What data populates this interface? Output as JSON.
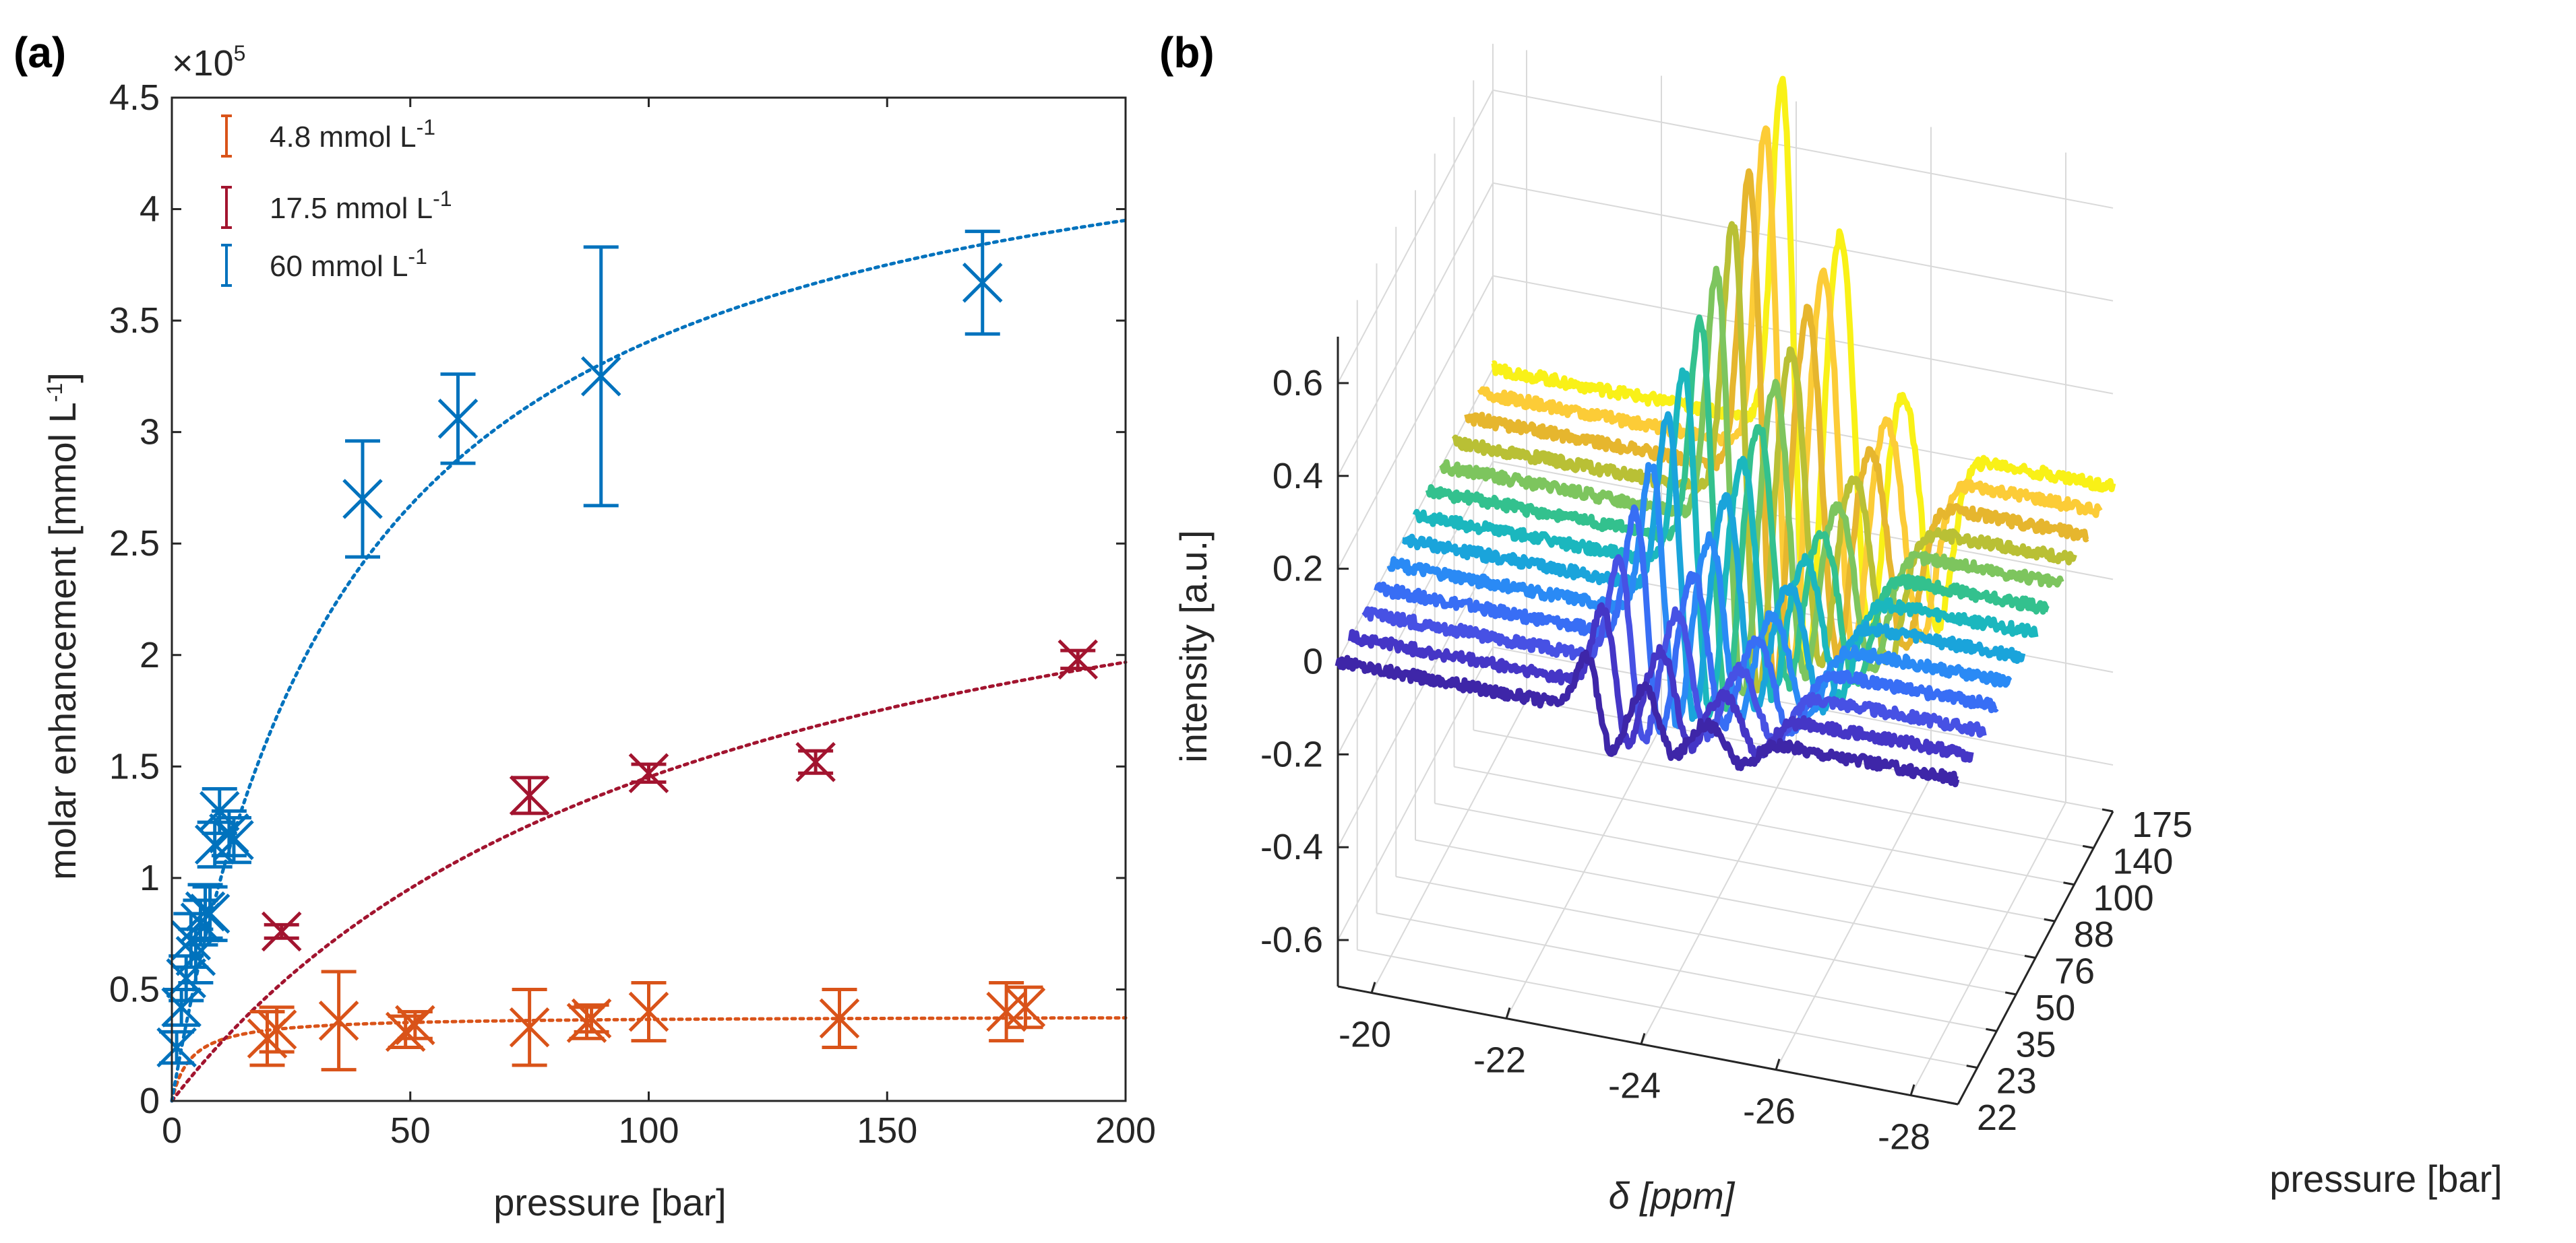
{
  "panel_labels": {
    "a": "(a)",
    "b": "(b)"
  },
  "chart_data": [
    {
      "type": "scatter",
      "panel": "(a)",
      "xlabel": "pressure [bar]",
      "ylabel": "molar enhancement [mmol L",
      "ylabel_sup": "-1",
      "ylabel_end": "]",
      "exponent_label": "×10",
      "exponent_sup": "5",
      "xlim": [
        0,
        200
      ],
      "ylim": [
        0,
        4.5
      ],
      "x_ticks": [
        "0",
        "50",
        "100",
        "150",
        "200"
      ],
      "y_ticks": [
        "0",
        "0.5",
        "1",
        "1.5",
        "2",
        "2.5",
        "3",
        "3.5",
        "4",
        "4.5"
      ],
      "x_tick_values": [
        0,
        50,
        100,
        150,
        200
      ],
      "y_tick_values": [
        0,
        0.5,
        1,
        1.5,
        2,
        2.5,
        3,
        3.5,
        4,
        4.5
      ],
      "legend_position": "top-left",
      "series": [
        {
          "name": "4.8 mmol L",
          "name_sup": "-1",
          "color": "#D95319",
          "fit": {
            "model": "saturation",
            "a": 0.38,
            "k": 4
          },
          "points": [
            {
              "x": 20,
              "y": 0.28,
              "err": 0.12
            },
            {
              "x": 22,
              "y": 0.32,
              "err": 0.1
            },
            {
              "x": 35,
              "y": 0.36,
              "err": 0.22
            },
            {
              "x": 49,
              "y": 0.31,
              "err": 0.07
            },
            {
              "x": 51,
              "y": 0.34,
              "err": 0.06
            },
            {
              "x": 75,
              "y": 0.33,
              "err": 0.17
            },
            {
              "x": 87,
              "y": 0.35,
              "err": 0.07
            },
            {
              "x": 88,
              "y": 0.37,
              "err": 0.06
            },
            {
              "x": 100,
              "y": 0.4,
              "err": 0.13
            },
            {
              "x": 140,
              "y": 0.37,
              "err": 0.13
            },
            {
              "x": 175,
              "y": 0.4,
              "err": 0.13
            },
            {
              "x": 179,
              "y": 0.42,
              "err": 0.09
            }
          ]
        },
        {
          "name": "17.5 mmol L",
          "name_sup": "-1",
          "color": "#A2142F",
          "fit": {
            "model": "saturation",
            "a": 3.05,
            "k": 110
          },
          "points": [
            {
              "x": 23,
              "y": 0.76,
              "err": 0.03
            },
            {
              "x": 75,
              "y": 1.37,
              "err": 0.08
            },
            {
              "x": 100,
              "y": 1.47,
              "err": 0.04
            },
            {
              "x": 135,
              "y": 1.52,
              "err": 0.05
            },
            {
              "x": 190,
              "y": 1.98,
              "err": 0.04
            }
          ]
        },
        {
          "name": "60 mmol L",
          "name_sup": "-1",
          "color": "#0072BD",
          "fit": {
            "model": "saturation",
            "a": 4.7,
            "k": 38
          },
          "points": [
            {
              "x": 1,
              "y": 0.24,
              "err": 0.07
            },
            {
              "x": 2,
              "y": 0.42,
              "err": 0.08
            },
            {
              "x": 3,
              "y": 0.55,
              "err": 0.1
            },
            {
              "x": 4,
              "y": 0.72,
              "err": 0.12
            },
            {
              "x": 5,
              "y": 0.65,
              "err": 0.12
            },
            {
              "x": 6,
              "y": 0.8,
              "err": 0.1
            },
            {
              "x": 7,
              "y": 0.85,
              "err": 0.12
            },
            {
              "x": 8,
              "y": 0.84,
              "err": 0.12
            },
            {
              "x": 9,
              "y": 1.15,
              "err": 0.1
            },
            {
              "x": 10,
              "y": 1.3,
              "err": 0.1
            },
            {
              "x": 12,
              "y": 1.2,
              "err": 0.1
            },
            {
              "x": 13,
              "y": 1.17,
              "err": 0.1
            },
            {
              "x": 40,
              "y": 2.7,
              "err": 0.26
            },
            {
              "x": 60,
              "y": 3.06,
              "err": 0.2
            },
            {
              "x": 90,
              "y": 3.25,
              "err": 0.58
            },
            {
              "x": 170,
              "y": 3.67,
              "err": 0.23
            }
          ]
        }
      ]
    },
    {
      "type": "line",
      "panel": "(b)",
      "style": "3d-waterfall",
      "xlabel": "δ [ppm]",
      "ylabel": "pressure [bar]",
      "zlabel": "intensity [a.u.]",
      "x_ticks": [
        "-20",
        "-22",
        "-24",
        "-26",
        "-28"
      ],
      "pressure_ticks": [
        "22",
        "23",
        "35",
        "50",
        "76",
        "88",
        "100",
        "140",
        "175"
      ],
      "z_ticks": [
        "-0.6",
        "-0.4",
        "-0.2",
        "0",
        "0.2",
        "0.4",
        "0.6"
      ],
      "xlim": [
        -19.5,
        -28.7
      ],
      "zlim": [
        -0.7,
        0.7
      ],
      "series_colors": [
        "#3E26A8",
        "#4536C6",
        "#4751E4",
        "#386EF5",
        "#2A8AF5",
        "#1AA4DB",
        "#1BB7BE",
        "#33C18E",
        "#7DC55E",
        "#B9C035",
        "#E6B62E",
        "#FCCC37",
        "#F9F117"
      ],
      "spectrum_model": {
        "peak1_ppm": -23.2,
        "peak2_ppm": -24.1,
        "peak3_ppm": -25.1,
        "peak_width_ppm": 0.22,
        "peak_spacing_ppm": 0.35,
        "amplitude_range": [
          0.12,
          0.78
        ],
        "baseline_noise": 0.012
      }
    }
  ]
}
